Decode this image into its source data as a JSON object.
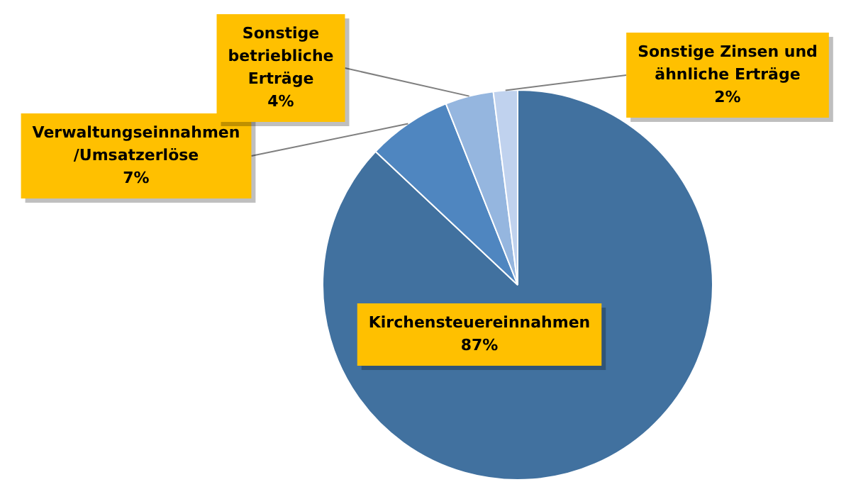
{
  "chart_data": {
    "type": "pie",
    "categories": [
      "Kirchensteuereinnahmen",
      "Verwaltungseinnahmen/Umsatzerlöse",
      "Sonstige betriebliche Erträge",
      "Sonstige Zinsen und ähnliche Erträge"
    ],
    "values": [
      87,
      7,
      4,
      2
    ],
    "colors": [
      "#41719f",
      "#4f86c0",
      "#95b6df",
      "#c0d2ee"
    ],
    "value_labels": [
      "87%",
      "7%",
      "4%",
      "2%"
    ],
    "legend": false
  }
}
